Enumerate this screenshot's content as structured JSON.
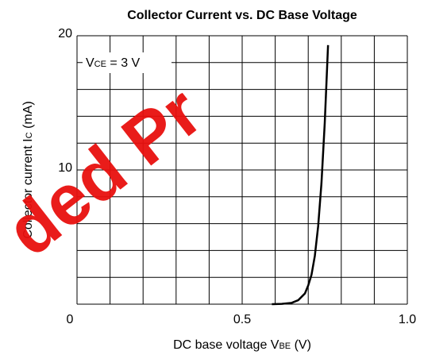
{
  "chart_data": {
    "type": "line",
    "title": "Collector Current vs. DC Base Voltage",
    "xlabel": {
      "main": "DC base voltage V",
      "sub": "BE",
      "unit": " (V)"
    },
    "ylabel": {
      "main": "Collector current I",
      "sub": "C",
      "unit": " (mA)"
    },
    "annotation": {
      "main": "V",
      "sub": "CE",
      "rest": " = 3 V"
    },
    "watermark": "ded Pr",
    "xlim": [
      0,
      1
    ],
    "ylim": [
      0,
      20
    ],
    "xticks": [
      0,
      0.5,
      {
        "value": 1,
        "label": "1.0"
      }
    ],
    "yticks": [
      10,
      20
    ],
    "xgrid": [
      0,
      0.1,
      0.2,
      0.3,
      0.4,
      0.5,
      0.6,
      0.7,
      0.8,
      0.9,
      1
    ],
    "ygrid": [
      0,
      2,
      4,
      6,
      8,
      10,
      12,
      14,
      16,
      18,
      20
    ],
    "grid": true,
    "series": [
      {
        "color": "#000000",
        "x": [
          0.59,
          0.62,
          0.65,
          0.67,
          0.69,
          0.7,
          0.71,
          0.72,
          0.73,
          0.74,
          0.75,
          0.76
        ],
        "values": [
          0,
          0.02,
          0.1,
          0.3,
          0.8,
          1.4,
          2.2,
          3.6,
          5.8,
          9.0,
          13.5,
          19.3
        ]
      }
    ]
  }
}
